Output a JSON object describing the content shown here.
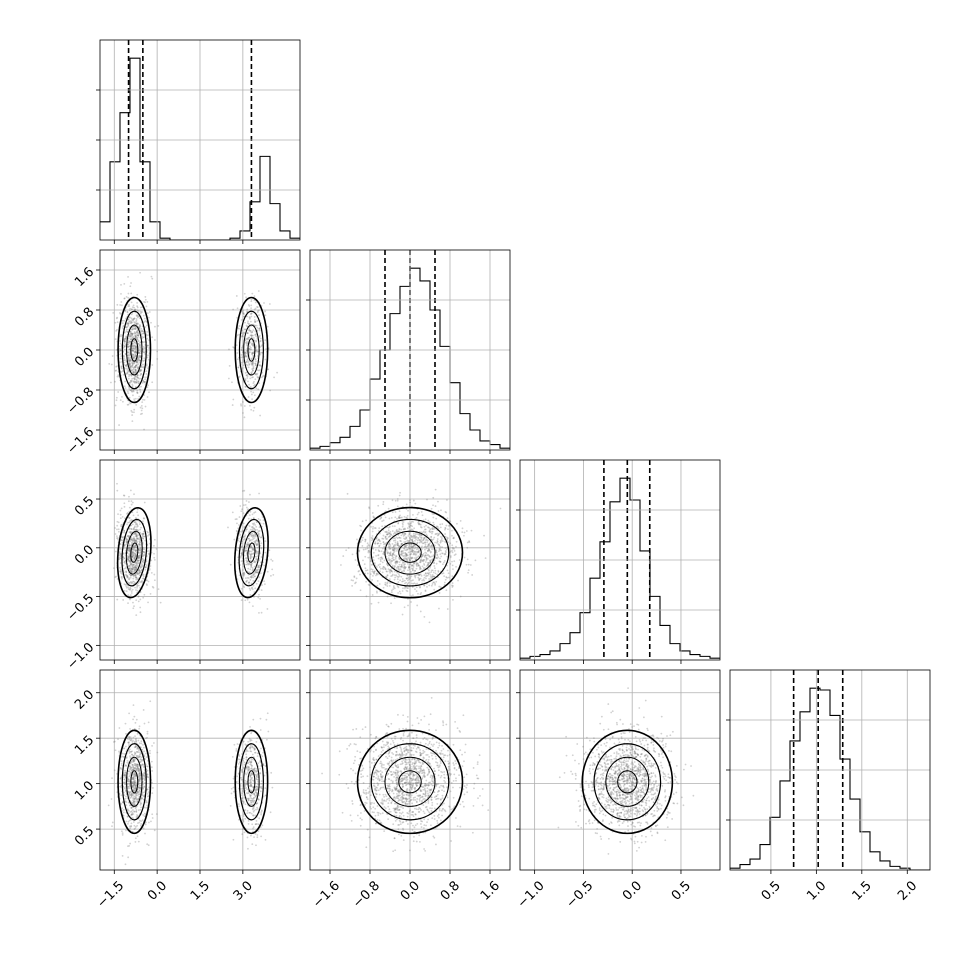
{
  "chart_data": {
    "type": "corner",
    "colors": {
      "line": "#000000",
      "grid": "#b0b0b0",
      "points": "#7a7a7a"
    },
    "grid": true,
    "parameters": [
      {
        "range": [
          -2.0,
          5.0
        ],
        "ticks": [
          -1.5,
          0.0,
          1.5,
          3.0
        ],
        "tick_labels": [
          "−1.5",
          "0.0",
          "1.5",
          "3.0"
        ],
        "modes": [
          {
            "mean": -0.8,
            "sd": 0.27,
            "weight": 0.67
          },
          {
            "mean": 3.3,
            "sd": 0.27,
            "weight": 0.33
          }
        ],
        "quantiles": [
          -1.0,
          -0.5,
          3.3
        ]
      },
      {
        "range": [
          -2.0,
          2.0
        ],
        "ticks": [
          -1.6,
          -0.8,
          0.0,
          0.8,
          1.6
        ],
        "tick_labels": [
          "−1.6",
          "−0.8",
          "0.0",
          "0.8",
          "1.6"
        ],
        "modes": [
          {
            "mean": 0.0,
            "sd": 0.5,
            "weight": 1.0
          }
        ],
        "quantiles": [
          -0.5,
          0.0,
          0.5
        ]
      },
      {
        "range": [
          -1.15,
          0.9
        ],
        "ticks": [
          -1.0,
          -0.5,
          0.0,
          0.5
        ],
        "tick_labels": [
          "−1.0",
          "−0.5",
          "0.0",
          "0.5"
        ],
        "modes": [
          {
            "mean": -0.05,
            "sd": 0.22,
            "weight": 1.0
          }
        ],
        "quantiles": [
          -0.29,
          -0.05,
          0.18
        ]
      },
      {
        "range": [
          0.05,
          2.25
        ],
        "ticks": [
          0.5,
          1.0,
          1.5,
          2.0
        ],
        "tick_labels": [
          "0.5",
          "1.0",
          "1.5",
          "2.0"
        ],
        "modes": [
          {
            "mean": 1.02,
            "sd": 0.27,
            "weight": 1.0
          }
        ],
        "quantiles": [
          0.75,
          1.02,
          1.29
        ]
      }
    ],
    "diagonal_histograms": [
      {
        "bins": 20,
        "range": [
          -2.0,
          5.0
        ],
        "counts": [
          0.1,
          0.43,
          0.7,
          1.0,
          0.43,
          0.1,
          0.01,
          0,
          0,
          0,
          0,
          0,
          0,
          0.01,
          0.05,
          0.21,
          0.46,
          0.2,
          0.05,
          0.01
        ]
      },
      {
        "bins": 20,
        "range": [
          -2.0,
          2.0
        ],
        "counts": [
          0.01,
          0.02,
          0.04,
          0.07,
          0.13,
          0.22,
          0.39,
          0.55,
          0.75,
          0.9,
          1.0,
          0.93,
          0.77,
          0.57,
          0.37,
          0.2,
          0.11,
          0.05,
          0.03,
          0.01
        ]
      },
      {
        "bins": 20,
        "range": [
          -1.15,
          0.9
        ],
        "counts": [
          0.01,
          0.02,
          0.03,
          0.05,
          0.09,
          0.15,
          0.26,
          0.45,
          0.65,
          0.87,
          1.0,
          0.88,
          0.6,
          0.35,
          0.19,
          0.09,
          0.05,
          0.03,
          0.02,
          0.01
        ]
      },
      {
        "bins": 20,
        "range": [
          0.05,
          2.25
        ],
        "counts": [
          0.01,
          0.03,
          0.06,
          0.14,
          0.29,
          0.49,
          0.71,
          0.87,
          1.0,
          0.99,
          0.85,
          0.61,
          0.39,
          0.21,
          0.1,
          0.05,
          0.02,
          0.01,
          0,
          0
        ]
      }
    ],
    "correlations": [
      {
        "x": 0,
        "y": 1,
        "rho": 0.0
      },
      {
        "x": 0,
        "y": 2,
        "rho": -0.15
      },
      {
        "x": 1,
        "y": 2,
        "rho": 0.0
      },
      {
        "x": 0,
        "y": 3,
        "rho": 0.0
      },
      {
        "x": 1,
        "y": 3,
        "rho": 0.0
      },
      {
        "x": 2,
        "y": 3,
        "rho": 0.0
      }
    ]
  }
}
